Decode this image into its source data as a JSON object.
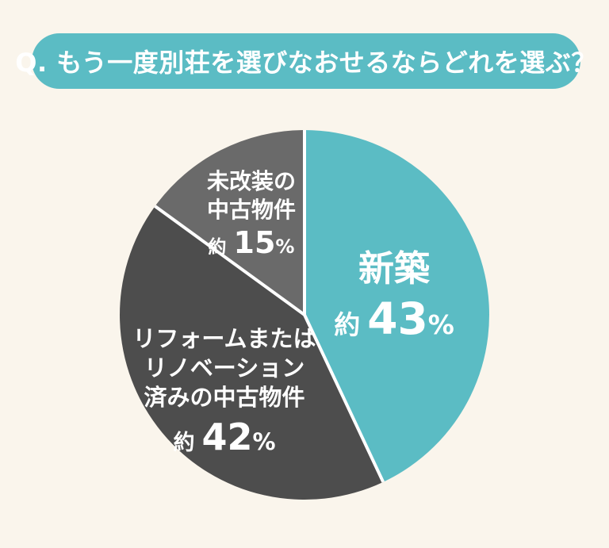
{
  "page": {
    "background_color": "#FAF5EC"
  },
  "header": {
    "question": "Q. もう一度別荘を選びなおせるならどれを選ぶ？",
    "pill_color": "#5BBCC4",
    "text_color": "#FFFFFF"
  },
  "chart_data": {
    "type": "pie",
    "title": "Q. もう一度別荘を選びなおせるならどれを選ぶ？",
    "direction": "clockwise",
    "start_angle_deg": 0,
    "divider_color": "#FFFFFF",
    "slices": [
      {
        "label": "新築",
        "label_lines": [
          "新築"
        ],
        "approx": "約",
        "value": 43,
        "display_value": "43",
        "unit": "%",
        "color": "#5BBCC4"
      },
      {
        "label": "リフォームまたはリノベーション済みの中古物件",
        "label_lines": [
          "リフォームまたは",
          "リノベーション",
          "済みの中古物件"
        ],
        "approx": "約",
        "value": 42,
        "display_value": "42",
        "unit": "%",
        "color": "#4D4D4D"
      },
      {
        "label": "未改装の中古物件",
        "label_lines": [
          "未改装の",
          "中古物件"
        ],
        "approx": "約",
        "value": 15,
        "display_value": "15",
        "unit": "%",
        "color": "#6A6A6A"
      }
    ]
  }
}
